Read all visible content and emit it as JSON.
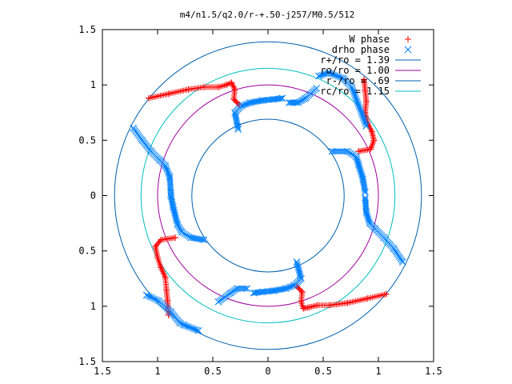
{
  "chart_data": {
    "type": "scatter",
    "title": "m4/n1.5/q2.0/r-+.50-j257/M0.5/512",
    "xlim": [
      -1.5,
      1.5
    ],
    "ylim": [
      -1.5,
      1.5
    ],
    "xticks": [
      -1.5,
      -1,
      -0.5,
      0,
      0.5,
      1,
      1.5
    ],
    "yticks": [
      -1.5,
      -1,
      -0.5,
      0,
      0.5,
      1,
      1.5
    ],
    "xtick_labels": [
      "1.5",
      "1",
      "0.5",
      "0",
      "0.5",
      "1",
      "1.5"
    ],
    "ytick_labels": [
      "1.5",
      "1",
      "0.5",
      "0",
      "0.5",
      "1",
      "1.5"
    ],
    "grid": false,
    "legend_position": "top-right",
    "series": [
      {
        "name": "W phase",
        "kind": "points",
        "marker": "plus",
        "color": "#ff0000",
        "arms": [
          [
            [
              -1.08,
              0.88
            ],
            [
              -0.9,
              0.92
            ],
            [
              -0.72,
              0.96
            ],
            [
              -0.58,
              0.98
            ],
            [
              -0.45,
              0.98
            ],
            [
              -0.38,
              1.0
            ],
            [
              -0.33,
              1.02
            ],
            [
              -0.3,
              0.96
            ],
            [
              -0.31,
              0.87
            ],
            [
              -0.26,
              0.82
            ]
          ],
          [
            [
              0.87,
              1.05
            ],
            [
              0.88,
              0.95
            ],
            [
              0.89,
              0.85
            ],
            [
              0.88,
              0.75
            ],
            [
              0.9,
              0.66
            ],
            [
              0.94,
              0.58
            ],
            [
              0.96,
              0.5
            ],
            [
              0.93,
              0.42
            ],
            [
              0.82,
              0.4
            ]
          ],
          [
            [
              1.07,
              -0.89
            ],
            [
              0.9,
              -0.93
            ],
            [
              0.72,
              -0.97
            ],
            [
              0.56,
              -0.99
            ],
            [
              0.45,
              -0.99
            ],
            [
              0.37,
              -1.01
            ],
            [
              0.32,
              -1.02
            ],
            [
              0.3,
              -0.96
            ],
            [
              0.31,
              -0.87
            ],
            [
              0.26,
              -0.82
            ]
          ],
          [
            [
              -0.9,
              -1.08
            ],
            [
              -0.91,
              -0.95
            ],
            [
              -0.92,
              -0.85
            ],
            [
              -0.93,
              -0.74
            ],
            [
              -0.97,
              -0.65
            ],
            [
              -1.0,
              -0.56
            ],
            [
              -1.02,
              -0.46
            ],
            [
              -0.97,
              -0.4
            ],
            [
              -0.84,
              -0.38
            ]
          ]
        ]
      },
      {
        "name": "drho phase",
        "kind": "points",
        "marker": "cross",
        "color": "#0080ff",
        "arms": [
          [
            [
              -0.27,
              0.6
            ],
            [
              -0.3,
              0.75
            ],
            [
              -0.24,
              0.81
            ],
            [
              -0.16,
              0.84
            ],
            [
              -0.05,
              0.86
            ],
            [
              0.05,
              0.87
            ],
            [
              0.13,
              0.88
            ]
          ],
          [
            [
              0.44,
              0.97
            ],
            [
              0.34,
              0.88
            ],
            [
              0.27,
              0.84
            ],
            [
              0.19,
              0.84
            ]
          ],
          [
            [
              0.89,
              0.63
            ],
            [
              0.76,
              0.98
            ],
            [
              0.68,
              1.06
            ],
            [
              0.55,
              1.11
            ],
            [
              0.46,
              1.08
            ]
          ],
          [
            [
              0.58,
              0.4
            ],
            [
              0.72,
              0.4
            ],
            [
              0.8,
              0.35
            ],
            [
              0.82,
              0.28
            ],
            [
              0.86,
              0.15
            ],
            [
              0.88,
              0.03
            ]
          ],
          [
            [
              0.88,
              -0.02
            ],
            [
              0.89,
              -0.15
            ],
            [
              0.92,
              -0.25
            ],
            [
              0.97,
              -0.3
            ],
            [
              1.05,
              -0.38
            ],
            [
              1.14,
              -0.48
            ],
            [
              1.22,
              -0.6
            ]
          ],
          [
            [
              0.26,
              -0.6
            ],
            [
              0.3,
              -0.75
            ],
            [
              0.24,
              -0.81
            ],
            [
              0.16,
              -0.84
            ],
            [
              0.05,
              -0.86
            ],
            [
              -0.05,
              -0.87
            ],
            [
              -0.13,
              -0.88
            ]
          ],
          [
            [
              -0.45,
              -0.96
            ],
            [
              -0.34,
              -0.88
            ],
            [
              -0.28,
              -0.84
            ],
            [
              -0.19,
              -0.84
            ]
          ],
          [
            [
              -0.63,
              -1.22
            ],
            [
              -0.76,
              -1.17
            ],
            [
              -0.8,
              -1.15
            ],
            [
              -0.88,
              -1.05
            ],
            [
              -0.99,
              -0.95
            ],
            [
              -1.1,
              -0.9
            ]
          ],
          [
            [
              -0.58,
              -0.4
            ],
            [
              -0.7,
              -0.38
            ],
            [
              -0.78,
              -0.33
            ],
            [
              -0.82,
              -0.26
            ],
            [
              -0.86,
              -0.1
            ],
            [
              -0.88,
              0.0
            ]
          ],
          [
            [
              -0.88,
              0.02
            ],
            [
              -0.89,
              0.17
            ],
            [
              -0.93,
              0.27
            ],
            [
              -0.98,
              0.32
            ],
            [
              -1.06,
              0.4
            ],
            [
              -1.14,
              0.5
            ],
            [
              -1.22,
              0.61
            ]
          ]
        ]
      },
      {
        "name": "r+/ro = 1.39",
        "kind": "circle",
        "radius": 1.39,
        "color": "#0060ad"
      },
      {
        "name": "ro/ro = 1.00",
        "kind": "circle",
        "radius": 1.0,
        "color": "#a000a0"
      },
      {
        "name": "r-/ro = .69",
        "kind": "circle",
        "radius": 0.69,
        "color": "#0060ad"
      },
      {
        "name": "rc/ro = 1.15",
        "kind": "circle",
        "radius": 1.15,
        "color": "#00c0c0"
      }
    ]
  }
}
